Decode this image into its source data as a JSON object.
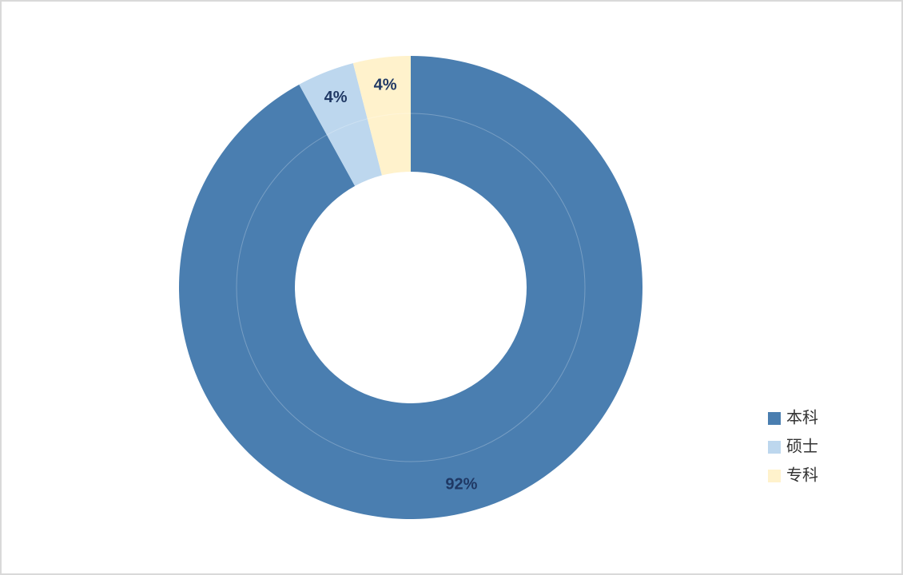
{
  "chart_data": {
    "type": "donut",
    "categories": [
      "本科",
      "硕士",
      "专科"
    ],
    "values": [
      92,
      4,
      4
    ],
    "value_labels": [
      "92%",
      "4%",
      "4%"
    ],
    "colors": [
      "#4a7eb0",
      "#bdd7ee",
      "#fff2cc"
    ],
    "legend": "right"
  }
}
